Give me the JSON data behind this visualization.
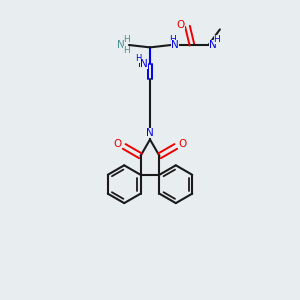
{
  "bg": "#e8edf0",
  "bc": "#1a1a1a",
  "nc": "#0000ee",
  "oc": "#ee0000",
  "teal": "#4a9090",
  "figsize": [
    3.0,
    3.0
  ],
  "dpi": 100
}
